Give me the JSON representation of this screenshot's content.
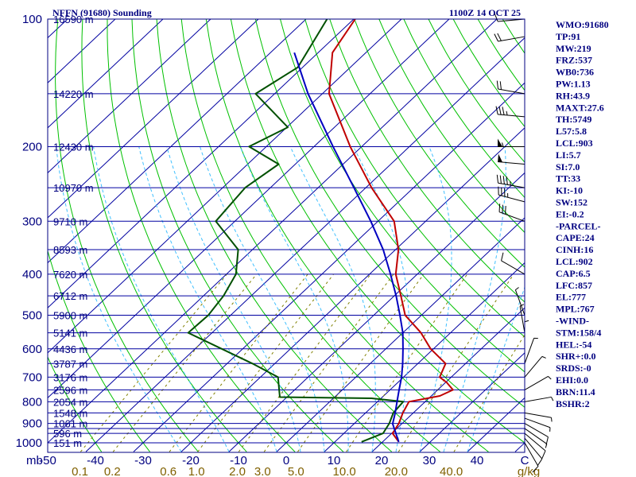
{
  "header": {
    "station": "NFFN (91680) Sounding",
    "time": "1100Z 14 OCT 25"
  },
  "colors": {
    "isobar": "#0000a0",
    "isotherm": "#0000a0",
    "dry_adiabat": "#00c000",
    "moist_adiabat": "#40c0ff",
    "mixing_ratio": "#808000",
    "temperature": "#c00000",
    "dewpoint": "#005000",
    "parcel": "#0000c0",
    "text": "#000080",
    "mixing_label": "#806000"
  },
  "chart_data": {
    "type": "line",
    "title": "NFFN (91680) Sounding",
    "subtitle": "1100Z 14 OCT 25",
    "xlabel": "",
    "ylabel": "mb",
    "y_scale": "log pressure (skew-T)",
    "xlim": [
      -50,
      50
    ],
    "ylim": [
      1000,
      100
    ],
    "x_ticks": [
      -50,
      -40,
      -30,
      -20,
      -10,
      0,
      10,
      20,
      30,
      40,
      50
    ],
    "x_tick_labels": [
      "-50",
      "-40",
      "-30",
      "-20",
      "-10",
      "0",
      "10",
      "20",
      "30",
      "40",
      "C"
    ],
    "x_axis_prefix": "mb",
    "pressure_ticks": [
      100,
      200,
      300,
      400,
      500,
      600,
      700,
      800,
      900,
      1000
    ],
    "isobars": [
      100,
      150,
      200,
      250,
      300,
      350,
      400,
      450,
      500,
      550,
      600,
      650,
      700,
      750,
      800,
      850,
      900,
      925,
      950,
      1000
    ],
    "height_labels": [
      {
        "p": 100,
        "label": "16590 m"
      },
      {
        "p": 150,
        "label": "14220 m"
      },
      {
        "p": 200,
        "label": "12430 m"
      },
      {
        "p": 250,
        "label": "10970 m"
      },
      {
        "p": 300,
        "label": "9710 m"
      },
      {
        "p": 350,
        "label": "8593 m"
      },
      {
        "p": 400,
        "label": "7620 m"
      },
      {
        "p": 450,
        "label": "6712 m"
      },
      {
        "p": 500,
        "label": "5900 m"
      },
      {
        "p": 550,
        "label": "5141 m"
      },
      {
        "p": 600,
        "label": "4436 m"
      },
      {
        "p": 650,
        "label": "3787 m"
      },
      {
        "p": 700,
        "label": "3176 m"
      },
      {
        "p": 750,
        "label": "2596 m"
      },
      {
        "p": 800,
        "label": "2054 m"
      },
      {
        "p": 850,
        "label": "1548 m"
      },
      {
        "p": 900,
        "label": "1061 m"
      },
      {
        "p": 950,
        "label": "596 m"
      },
      {
        "p": 1000,
        "label": "151 m"
      }
    ],
    "mixing_ratio_labels": [
      "0.1",
      "0.2",
      "0.6",
      "1.0",
      "2.0",
      "3.0",
      "5.0",
      "10.0",
      "20.0",
      "40.0",
      "g/kg"
    ],
    "series": [
      {
        "name": "",
        "role": "temperature",
        "points": [
          {
            "p": 995,
            "t": 23.4
          },
          {
            "p": 950,
            "t": 20.2
          },
          {
            "p": 900,
            "t": 19.3
          },
          {
            "p": 850,
            "t": 17.8
          },
          {
            "p": 800,
            "t": 16.6
          },
          {
            "p": 775,
            "t": 21.8
          },
          {
            "p": 750,
            "t": 23.2
          },
          {
            "p": 720,
            "t": 20.2
          },
          {
            "p": 700,
            "t": 17.6
          },
          {
            "p": 650,
            "t": 15.8
          },
          {
            "p": 600,
            "t": 9.4
          },
          {
            "p": 550,
            "t": 3.8
          },
          {
            "p": 500,
            "t": -3.4
          },
          {
            "p": 450,
            "t": -8.6
          },
          {
            "p": 400,
            "t": -14.5
          },
          {
            "p": 350,
            "t": -19.4
          },
          {
            "p": 300,
            "t": -26.6
          },
          {
            "p": 250,
            "t": -38.8
          },
          {
            "p": 200,
            "t": -52.4
          },
          {
            "p": 150,
            "t": -68.6
          },
          {
            "p": 120,
            "t": -77.0
          },
          {
            "p": 100,
            "t": -79.7
          }
        ]
      },
      {
        "name": "",
        "role": "dewpoint",
        "points": [
          {
            "p": 995,
            "t": 15.6
          },
          {
            "p": 950,
            "t": 18.2
          },
          {
            "p": 900,
            "t": 17.3
          },
          {
            "p": 850,
            "t": 15.8
          },
          {
            "p": 800,
            "t": 15.4
          },
          {
            "p": 785,
            "t": 8.0
          },
          {
            "p": 780,
            "t": -11.5
          },
          {
            "p": 700,
            "t": -16.3
          },
          {
            "p": 650,
            "t": -24.7
          },
          {
            "p": 550,
            "t": -45.0
          },
          {
            "p": 500,
            "t": -44.7
          },
          {
            "p": 450,
            "t": -45.8
          },
          {
            "p": 400,
            "t": -48.0
          },
          {
            "p": 350,
            "t": -53.0
          },
          {
            "p": 300,
            "t": -64.0
          },
          {
            "p": 250,
            "t": -65.3
          },
          {
            "p": 220,
            "t": -63.5
          },
          {
            "p": 200,
            "t": -73.6
          },
          {
            "p": 180,
            "t": -69.8
          },
          {
            "p": 150,
            "t": -84.0
          },
          {
            "p": 130,
            "t": -81.0
          },
          {
            "p": 100,
            "t": -85.6
          }
        ]
      },
      {
        "name": "",
        "role": "parcel",
        "points": [
          {
            "p": 995,
            "t": 23.4
          },
          {
            "p": 902,
            "t": 18.1
          },
          {
            "p": 850,
            "t": 16.2
          },
          {
            "p": 800,
            "t": 14.1
          },
          {
            "p": 750,
            "t": 11.9
          },
          {
            "p": 700,
            "t": 9.6
          },
          {
            "p": 650,
            "t": 6.8
          },
          {
            "p": 600,
            "t": 3.6
          },
          {
            "p": 550,
            "t": 0.0
          },
          {
            "p": 500,
            "t": -4.5
          },
          {
            "p": 450,
            "t": -9.6
          },
          {
            "p": 400,
            "t": -15.6
          },
          {
            "p": 350,
            "t": -22.6
          },
          {
            "p": 300,
            "t": -31.5
          },
          {
            "p": 250,
            "t": -42.5
          },
          {
            "p": 200,
            "t": -56.0
          },
          {
            "p": 150,
            "t": -73.0
          },
          {
            "p": 120,
            "t": -85.0
          }
        ]
      }
    ],
    "wind_barbs": [
      {
        "p": 1000,
        "dir": 150,
        "spd": 10
      },
      {
        "p": 975,
        "dir": 140,
        "spd": 10
      },
      {
        "p": 950,
        "dir": 130,
        "spd": 10
      },
      {
        "p": 925,
        "dir": 125,
        "spd": 5
      },
      {
        "p": 900,
        "dir": 120,
        "spd": 10
      },
      {
        "p": 875,
        "dir": 110,
        "spd": 5
      },
      {
        "p": 850,
        "dir": 100,
        "spd": 5
      },
      {
        "p": 800,
        "dir": 80,
        "spd": 5
      },
      {
        "p": 750,
        "dir": 60,
        "spd": 5
      },
      {
        "p": 700,
        "dir": 40,
        "spd": 5
      },
      {
        "p": 650,
        "dir": 20,
        "spd": 5
      },
      {
        "p": 600,
        "dir": 0,
        "spd": 5
      },
      {
        "p": 550,
        "dir": 350,
        "spd": 5
      },
      {
        "p": 500,
        "dir": 340,
        "spd": 5
      },
      {
        "p": 400,
        "dir": 300,
        "spd": 10
      },
      {
        "p": 300,
        "dir": 290,
        "spd": 30
      },
      {
        "p": 270,
        "dir": 285,
        "spd": 35
      },
      {
        "p": 250,
        "dir": 280,
        "spd": 45
      },
      {
        "p": 220,
        "dir": 275,
        "spd": 50
      },
      {
        "p": 200,
        "dir": 270,
        "spd": 55
      },
      {
        "p": 170,
        "dir": 275,
        "spd": 35
      },
      {
        "p": 150,
        "dir": 280,
        "spd": 20
      },
      {
        "p": 110,
        "dir": 260,
        "spd": 20
      },
      {
        "p": 100,
        "dir": 265,
        "spd": 10
      }
    ]
  },
  "indices": [
    "WMO:91680",
    "TP:91",
    "MW:219",
    "FRZ:537",
    "WB0:736",
    "PW:1.13",
    "RH:43.9",
    "MAXT:27.6",
    "TH:5749",
    "L57:5.8",
    "LCL:903",
    "LI:5.7",
    "SI:7.0",
    "TT:33",
    "KI:-10",
    "SW:152",
    "EI:-0.2",
    "-PARCEL-",
    "CAPE:24",
    "CINH:16",
    "LCL:902",
    "CAP:6.5",
    "LFC:857",
    "EL:777",
    "MPL:767",
    "-WIND-",
    "STM:158/4",
    "HEL:-54",
    "SHR+:0.0",
    "SRDS:-0",
    "EHI:0.0",
    "BRN:11.4",
    "BSHR:2"
  ]
}
